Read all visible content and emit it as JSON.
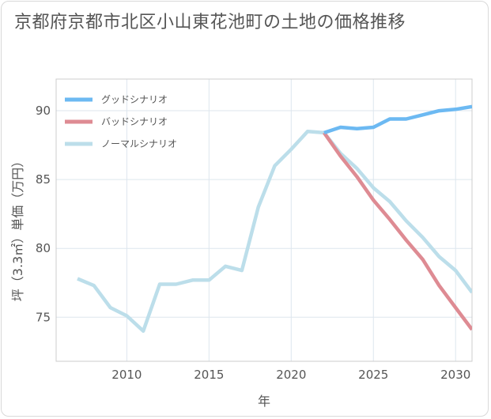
{
  "title": "京都府京都市北区小山東花池町の土地の価格推移",
  "chart_data": {
    "type": "line",
    "title": "京都府京都市北区小山東花池町の土地の価格推移",
    "xlabel": "年",
    "ylabel": "坪（3.3㎡）単価（万円）",
    "xlim": [
      2005.7,
      2031
    ],
    "ylim": [
      71.8,
      92.3
    ],
    "x_ticks": [
      2010,
      2015,
      2020,
      2025,
      2030
    ],
    "y_ticks": [
      75,
      80,
      85,
      90
    ],
    "grid": true,
    "legend_position": "top-left",
    "series": [
      {
        "name": "グッドシナリオ",
        "color": "#6cb9f2",
        "x": [
          2022,
          2023,
          2024,
          2025,
          2026,
          2027,
          2028,
          2029,
          2030,
          2031
        ],
        "values": [
          88.4,
          88.8,
          88.7,
          88.8,
          89.4,
          89.4,
          89.7,
          90.0,
          90.1,
          90.3
        ]
      },
      {
        "name": "バッドシナリオ",
        "color": "#de8b93",
        "x": [
          2022,
          2023,
          2024,
          2025,
          2026,
          2027,
          2028,
          2029,
          2030,
          2031
        ],
        "values": [
          88.4,
          86.7,
          85.2,
          83.5,
          82.1,
          80.6,
          79.2,
          77.3,
          75.7,
          74.1
        ]
      },
      {
        "name": "ノーマルシナリオ",
        "color": "#bcdeea",
        "x": [
          2007,
          2008,
          2009,
          2010,
          2011,
          2012,
          2013,
          2014,
          2015,
          2016,
          2017,
          2018,
          2019,
          2020,
          2021,
          2022,
          2023,
          2024,
          2025,
          2026,
          2027,
          2028,
          2029,
          2030,
          2031
        ],
        "values": [
          77.8,
          77.3,
          75.7,
          75.1,
          74.0,
          77.4,
          77.4,
          77.7,
          77.7,
          78.7,
          78.4,
          83.0,
          86.0,
          87.2,
          88.5,
          88.4,
          86.9,
          85.8,
          84.4,
          83.4,
          82.0,
          80.8,
          79.4,
          78.4,
          76.8
        ]
      }
    ]
  }
}
